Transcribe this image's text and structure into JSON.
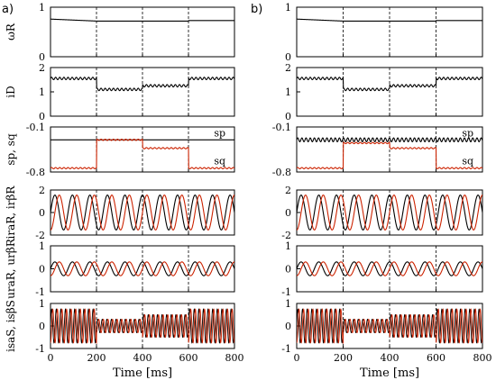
{
  "panels": [
    {
      "label": "a)",
      "xlabel": "Time [ms]"
    },
    {
      "label": "b)",
      "xlabel": "Time [ms]"
    }
  ],
  "x_ticks": [
    0,
    200,
    400,
    600,
    800
  ],
  "colors": {
    "black": "#000000",
    "red": "#cc2200"
  },
  "chart_data": [
    {
      "type": "line",
      "panel": "a)",
      "title": "",
      "xlim": [
        0,
        800
      ],
      "xlabel": "Time [ms]",
      "vlines": [
        200,
        400,
        600,
        800
      ],
      "rows": [
        {
          "ylabel": "ωR",
          "ylim": [
            0,
            1
          ],
          "yticks": [
            0,
            1
          ],
          "series": [
            {
              "color": "black",
              "kind": "steps",
              "segments": [
                [
                  0,
                  200,
                  0.76,
                  0.72
                ],
                [
                  200,
                  400,
                  0.72,
                  0.72
                ],
                [
                  400,
                  600,
                  0.72,
                  0.72
                ],
                [
                  600,
                  800,
                  0.73,
                  0.73
                ]
              ],
              "ripple": 0
            }
          ]
        },
        {
          "ylabel": "iD",
          "ylim": [
            0,
            2
          ],
          "yticks": [
            0,
            1,
            2
          ],
          "series": [
            {
              "color": "black",
              "kind": "steps",
              "segments": [
                [
                  0,
                  200,
                  1.55,
                  1.55
                ],
                [
                  200,
                  400,
                  1.1,
                  1.1
                ],
                [
                  400,
                  600,
                  1.25,
                  1.25
                ],
                [
                  600,
                  800,
                  1.55,
                  1.55
                ]
              ],
              "ripple": 0.05
            }
          ]
        },
        {
          "ylabel": "sp, sq",
          "ylim": [
            -0.8,
            -0.1
          ],
          "ytick_labels": [
            "-0.1",
            "-0.8"
          ],
          "annotations": [
            "sp",
            "sq"
          ],
          "series": [
            {
              "name": "sp",
              "color": "black",
              "kind": "steps",
              "segments": [
                [
                  0,
                  800,
                  -0.3,
                  -0.3
                ]
              ],
              "ripple": 0
            },
            {
              "name": "sq",
              "color": "red",
              "kind": "steps",
              "segments": [
                [
                  0,
                  200,
                  -0.74,
                  -0.74
                ],
                [
                  200,
                  400,
                  -0.3,
                  -0.3
                ],
                [
                  400,
                  600,
                  -0.43,
                  -0.43
                ],
                [
                  600,
                  800,
                  -0.74,
                  -0.74
                ]
              ],
              "ripple": 0.01
            }
          ]
        },
        {
          "ylabel": "iraR, irβR",
          "ylim": [
            -2,
            2
          ],
          "yticks": [
            -2,
            0,
            2
          ],
          "series": [
            {
              "color": "black",
              "kind": "sine",
              "amp": 1.55,
              "cycles": 10.5,
              "phase": 0
            },
            {
              "color": "red",
              "kind": "sine",
              "amp": 1.55,
              "cycles": 10.5,
              "phase": -1.57
            }
          ]
        },
        {
          "ylabel": "uraR, urβR",
          "ylim": [
            -1,
            1
          ],
          "yticks": [
            -1,
            0,
            1
          ],
          "series": [
            {
              "color": "black",
              "kind": "sine",
              "amp": 0.3,
              "cycles": 10.5,
              "phase": 0
            },
            {
              "color": "red",
              "kind": "sine",
              "amp": 0.3,
              "cycles": 10.5,
              "phase": -1.57
            }
          ]
        },
        {
          "ylabel": "isaS, isβS",
          "ylim": [
            -1,
            1
          ],
          "yticks": [
            -1,
            0,
            1
          ],
          "series": [
            {
              "color": "black",
              "kind": "sine_env",
              "cycles": 40,
              "phase": 0,
              "env": [
                [
                  0,
                  200,
                  0.75
                ],
                [
                  200,
                  400,
                  0.3
                ],
                [
                  400,
                  600,
                  0.5
                ],
                [
                  600,
                  800,
                  0.75
                ]
              ]
            },
            {
              "color": "red",
              "kind": "sine_env",
              "cycles": 40,
              "phase": -1.57,
              "env": [
                [
                  0,
                  200,
                  0.75
                ],
                [
                  200,
                  400,
                  0.3
                ],
                [
                  400,
                  600,
                  0.5
                ],
                [
                  600,
                  800,
                  0.75
                ]
              ]
            }
          ]
        }
      ]
    },
    {
      "type": "line",
      "panel": "b)",
      "title": "",
      "xlim": [
        0,
        800
      ],
      "xlabel": "Time [ms]",
      "vlines": [
        200,
        400,
        600,
        800
      ],
      "rows": [
        {
          "ylabel": "",
          "ylim": [
            0,
            1
          ],
          "yticks": [
            0,
            1
          ],
          "series": [
            {
              "color": "black",
              "kind": "steps",
              "segments": [
                [
                  0,
                  200,
                  0.76,
                  0.72
                ],
                [
                  200,
                  400,
                  0.72,
                  0.72
                ],
                [
                  400,
                  600,
                  0.72,
                  0.72
                ],
                [
                  600,
                  800,
                  0.73,
                  0.73
                ]
              ],
              "ripple": 0
            }
          ]
        },
        {
          "ylabel": "",
          "ylim": [
            0,
            2
          ],
          "yticks": [
            0,
            1,
            2
          ],
          "series": [
            {
              "color": "black",
              "kind": "steps",
              "segments": [
                [
                  0,
                  200,
                  1.55,
                  1.55
                ],
                [
                  200,
                  400,
                  1.1,
                  1.1
                ],
                [
                  400,
                  600,
                  1.25,
                  1.25
                ],
                [
                  600,
                  800,
                  1.55,
                  1.55
                ]
              ],
              "ripple": 0.05
            }
          ]
        },
        {
          "ylabel": "",
          "ylim": [
            -0.8,
            -0.1
          ],
          "ytick_labels": [
            "-0.1",
            "-0.8"
          ],
          "annotations": [
            "sp",
            "sq"
          ],
          "series": [
            {
              "name": "sp",
              "color": "black",
              "kind": "steps",
              "segments": [
                [
                  0,
                  800,
                  -0.3,
                  -0.3
                ]
              ],
              "ripple": 0.03
            },
            {
              "name": "sq",
              "color": "red",
              "kind": "steps",
              "segments": [
                [
                  0,
                  200,
                  -0.74,
                  -0.74
                ],
                [
                  200,
                  400,
                  -0.35,
                  -0.35
                ],
                [
                  400,
                  600,
                  -0.43,
                  -0.43
                ],
                [
                  600,
                  800,
                  -0.74,
                  -0.74
                ]
              ],
              "ripple": 0.01
            }
          ]
        },
        {
          "ylabel": "",
          "ylim": [
            -2,
            2
          ],
          "yticks": [
            -2,
            0,
            2
          ],
          "series": [
            {
              "color": "black",
              "kind": "sine",
              "amp": 1.55,
              "cycles": 10.5,
              "phase": 0
            },
            {
              "color": "red",
              "kind": "sine",
              "amp": 1.55,
              "cycles": 10.5,
              "phase": -1.57
            }
          ]
        },
        {
          "ylabel": "",
          "ylim": [
            -1,
            1
          ],
          "yticks": [
            -1,
            0,
            1
          ],
          "series": [
            {
              "color": "black",
              "kind": "sine",
              "amp": 0.3,
              "cycles": 10.5,
              "phase": 0
            },
            {
              "color": "red",
              "kind": "sine",
              "amp": 0.3,
              "cycles": 10.5,
              "phase": -1.57
            }
          ]
        },
        {
          "ylabel": "",
          "ylim": [
            -1,
            1
          ],
          "yticks": [
            -1,
            0,
            1
          ],
          "series": [
            {
              "color": "black",
              "kind": "sine_env",
              "cycles": 40,
              "phase": 0,
              "env": [
                [
                  0,
                  200,
                  0.75
                ],
                [
                  200,
                  400,
                  0.3
                ],
                [
                  400,
                  600,
                  0.5
                ],
                [
                  600,
                  800,
                  0.75
                ]
              ]
            },
            {
              "color": "red",
              "kind": "sine_env",
              "cycles": 40,
              "phase": -1.57,
              "env": [
                [
                  0,
                  200,
                  0.75
                ],
                [
                  200,
                  400,
                  0.3
                ],
                [
                  400,
                  600,
                  0.5
                ],
                [
                  600,
                  800,
                  0.75
                ]
              ]
            }
          ]
        }
      ]
    }
  ]
}
